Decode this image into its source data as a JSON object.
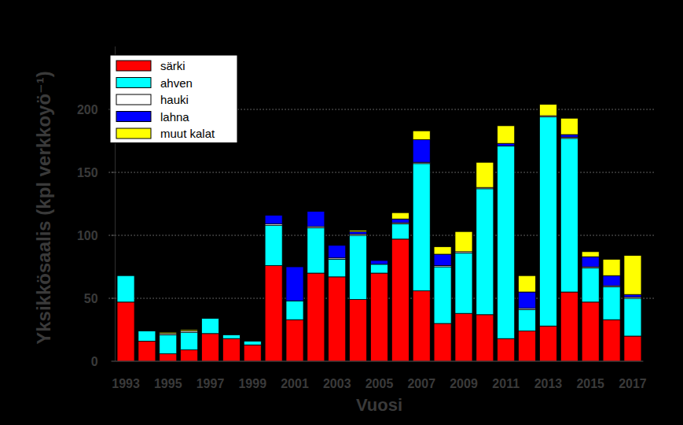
{
  "chart_data": {
    "type": "bar",
    "stacked": true,
    "grid": true,
    "legend": "upper left",
    "y_label": "Yksikkösaalis (kpl verkkoyö⁻¹)",
    "x_label": "Vuosi",
    "categories": [
      "1993",
      null,
      "1995",
      null,
      "1997",
      null,
      "1999",
      null,
      "2001",
      null,
      "2003",
      null,
      "2005",
      null,
      "2007",
      null,
      "2009",
      null,
      "2011",
      null,
      "2013",
      null,
      "2015",
      null,
      "2017"
    ],
    "ylim": [
      0,
      250
    ],
    "yticks": [
      0,
      50,
      100,
      150,
      200
    ],
    "series": [
      {
        "name": "särki",
        "color": "#ff0000",
        "values": [
          47,
          16,
          6,
          9,
          22,
          18,
          13,
          76,
          33,
          70,
          67,
          49,
          70,
          97,
          56,
          30,
          38,
          37,
          18,
          24,
          28,
          55,
          47,
          33,
          20
        ]
      },
      {
        "name": "ahven",
        "color": "#00ffff",
        "values": [
          21,
          8,
          15,
          14,
          12,
          3,
          3,
          32,
          15,
          36,
          14,
          51,
          7,
          12,
          101,
          45,
          48,
          100,
          153,
          17,
          166,
          122,
          27,
          26,
          30
        ]
      },
      {
        "name": "hauki",
        "color": "#ffffff",
        "values": [
          0,
          0,
          1,
          1,
          0,
          0,
          0,
          1,
          0,
          1,
          1,
          1,
          0,
          1,
          1,
          1,
          1,
          1,
          0,
          1,
          1,
          1,
          1,
          1,
          1
        ]
      },
      {
        "name": "lahna",
        "color": "#0000ff",
        "values": [
          0,
          0,
          0,
          0,
          0,
          0,
          0,
          7,
          27,
          12,
          10,
          2,
          3,
          3,
          18,
          9,
          0,
          0,
          2,
          13,
          0,
          2,
          8,
          8,
          2
        ]
      },
      {
        "name": "muut kalat",
        "color": "#ffff00",
        "values": [
          0,
          0,
          1,
          1,
          0,
          0,
          0,
          0,
          0,
          0,
          0,
          1,
          0,
          5,
          7,
          6,
          16,
          20,
          14,
          13,
          9,
          13,
          4,
          13,
          31
        ]
      }
    ]
  }
}
